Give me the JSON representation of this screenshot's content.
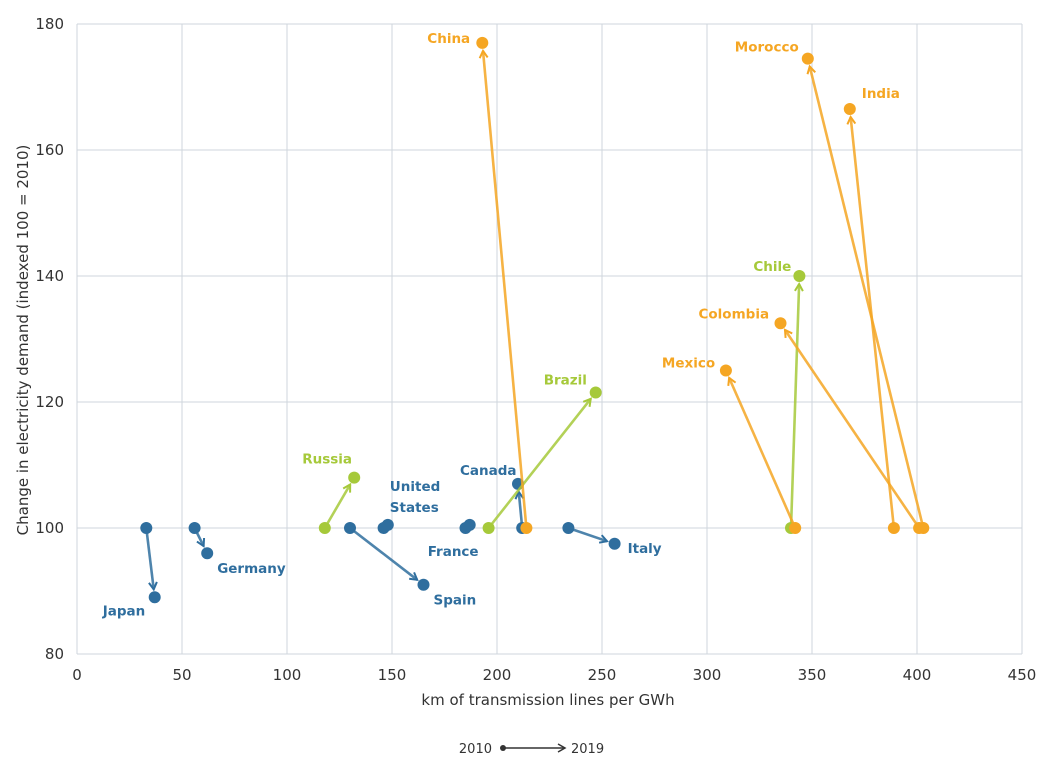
{
  "chart_data": {
    "type": "scatter",
    "xlabel": "km of transmission lines per GWh",
    "ylabel": "Change in electricity demand (indexed 100 = 2010)",
    "xlim": [
      0,
      450
    ],
    "ylim": [
      80,
      180
    ],
    "xticks": [
      "0",
      "50",
      "100",
      "150",
      "200",
      "250",
      "300",
      "350",
      "400",
      "450"
    ],
    "yticks": [
      "80",
      "100",
      "120",
      "140",
      "160",
      "180"
    ],
    "grid": true,
    "colors": {
      "blue": "#2f6e9e",
      "green": "#a6c93a",
      "orange": "#f5a623",
      "grid": "#cfd6dc"
    },
    "legend": {
      "start": "2010",
      "end": "2019"
    },
    "series": [
      {
        "name": "Japan",
        "group": "blue",
        "from": [
          33,
          100
        ],
        "to": [
          37,
          89
        ]
      },
      {
        "name": "Germany",
        "group": "blue",
        "from": [
          56,
          100
        ],
        "to": [
          62,
          96
        ]
      },
      {
        "name": "Spain",
        "group": "blue",
        "from": [
          130,
          100
        ],
        "to": [
          165,
          91
        ]
      },
      {
        "name": "United States",
        "group": "blue",
        "from": [
          146,
          100
        ],
        "to": [
          148,
          100.5
        ]
      },
      {
        "name": "France",
        "group": "blue",
        "from": [
          185,
          100
        ],
        "to": [
          187,
          100.5
        ]
      },
      {
        "name": "Canada",
        "group": "blue",
        "from": [
          212,
          100
        ],
        "to": [
          210,
          107
        ]
      },
      {
        "name": "Italy",
        "group": "blue",
        "from": [
          234,
          100
        ],
        "to": [
          256,
          97.5
        ]
      },
      {
        "name": "Russia",
        "group": "green",
        "from": [
          118,
          100
        ],
        "to": [
          132,
          108
        ]
      },
      {
        "name": "Brazil",
        "group": "green",
        "from": [
          196,
          100
        ],
        "to": [
          247,
          121.5
        ]
      },
      {
        "name": "Chile",
        "group": "green",
        "from": [
          340,
          100
        ],
        "to": [
          344,
          140
        ]
      },
      {
        "name": "China",
        "group": "orange",
        "from": [
          214,
          100
        ],
        "to": [
          193,
          177
        ]
      },
      {
        "name": "Morocco",
        "group": "orange",
        "from": [
          403,
          100
        ],
        "to": [
          348,
          174.5
        ]
      },
      {
        "name": "India",
        "group": "orange",
        "from": [
          389,
          100
        ],
        "to": [
          368,
          166.5
        ]
      },
      {
        "name": "Colombia",
        "group": "orange",
        "from": [
          401,
          100
        ],
        "to": [
          335,
          132.5
        ]
      },
      {
        "name": "Mexico",
        "group": "orange",
        "from": [
          342,
          100
        ],
        "to": [
          309,
          125
        ]
      }
    ]
  }
}
